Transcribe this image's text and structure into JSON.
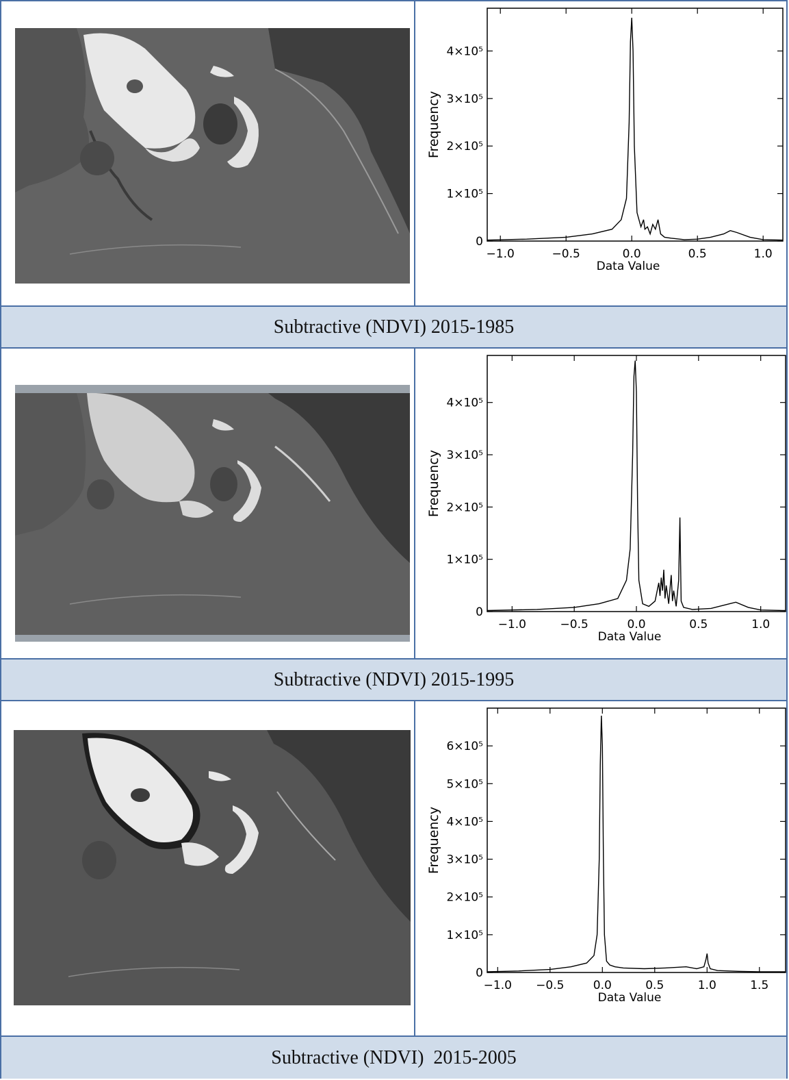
{
  "captions": [
    "Subtractive (NDVI) 2015-1985",
    "Subtractive (NDVI) 2015-1995",
    "Subtractive (NDVI)  2015-2005"
  ],
  "image_alts": [
    "NDVI difference image 2015-1985",
    "NDVI difference image 2015-1995",
    "NDVI difference image 2015-2005"
  ],
  "colors": {
    "border": "#4a6fa5",
    "caption_bg": "#d0dcea",
    "line": "#000000"
  },
  "chart_data": [
    {
      "type": "line",
      "xlabel": "Data Value",
      "ylabel": "Frequency",
      "xlim": [
        -1.1,
        1.15
      ],
      "ylim": [
        0,
        490000
      ],
      "xticks": [
        -1.0,
        -0.5,
        0.0,
        0.5,
        1.0
      ],
      "xtick_labels": [
        "−1.0",
        "−0.5",
        "0.0",
        "0.5",
        "1.0"
      ],
      "yticks": [
        0,
        100000,
        200000,
        300000,
        400000
      ],
      "ytick_labels": [
        "0",
        "1×10⁵",
        "2×10⁵",
        "3×10⁵",
        "4×10⁵"
      ],
      "series": [
        {
          "x": [
            -1.1,
            -0.8,
            -0.5,
            -0.3,
            -0.15,
            -0.08,
            -0.04,
            -0.02,
            -0.01,
            0.0,
            0.01,
            0.02,
            0.04,
            0.07,
            0.09,
            0.1,
            0.12,
            0.14,
            0.16,
            0.18,
            0.2,
            0.22,
            0.25,
            0.3,
            0.4,
            0.5,
            0.6,
            0.7,
            0.75,
            0.8,
            0.9,
            1.0,
            1.15
          ],
          "y": [
            2000,
            4000,
            8000,
            15000,
            25000,
            45000,
            90000,
            250000,
            420000,
            470000,
            400000,
            200000,
            60000,
            30000,
            45000,
            25000,
            30000,
            15000,
            35000,
            25000,
            45000,
            15000,
            8000,
            6000,
            3000,
            4000,
            8000,
            15000,
            22000,
            18000,
            8000,
            3000,
            2000
          ]
        }
      ]
    },
    {
      "type": "line",
      "xlabel": "Data Value",
      "ylabel": "Frequency",
      "xlim": [
        -1.2,
        1.2
      ],
      "ylim": [
        0,
        490000
      ],
      "xticks": [
        -1.0,
        -0.5,
        0.0,
        0.5,
        1.0
      ],
      "xtick_labels": [
        "−1.0",
        "−0.5",
        "0.0",
        "0.5",
        "1.0"
      ],
      "yticks": [
        0,
        100000,
        200000,
        300000,
        400000
      ],
      "ytick_labels": [
        "0",
        "1×10⁵",
        "2×10⁵",
        "3×10⁵",
        "4×10⁵"
      ],
      "series": [
        {
          "x": [
            -1.2,
            -0.8,
            -0.5,
            -0.3,
            -0.15,
            -0.08,
            -0.05,
            -0.03,
            -0.02,
            -0.01,
            0.0,
            0.01,
            0.02,
            0.05,
            0.1,
            0.15,
            0.18,
            0.19,
            0.2,
            0.21,
            0.22,
            0.23,
            0.24,
            0.26,
            0.28,
            0.29,
            0.3,
            0.32,
            0.34,
            0.35,
            0.36,
            0.38,
            0.45,
            0.6,
            0.75,
            0.8,
            0.9,
            1.0,
            1.2
          ],
          "y": [
            2000,
            4000,
            8000,
            15000,
            25000,
            60000,
            120000,
            300000,
            450000,
            480000,
            420000,
            200000,
            60000,
            15000,
            10000,
            20000,
            55000,
            30000,
            65000,
            40000,
            80000,
            25000,
            50000,
            15000,
            70000,
            20000,
            40000,
            10000,
            60000,
            180000,
            20000,
            8000,
            4000,
            6000,
            15000,
            18000,
            8000,
            3000,
            2000
          ]
        }
      ]
    },
    {
      "type": "line",
      "xlabel": "Data Value",
      "ylabel": "Frequency",
      "xlim": [
        -1.1,
        1.75
      ],
      "ylim": [
        0,
        700000
      ],
      "xticks": [
        -1.0,
        -0.5,
        0.0,
        0.5,
        1.0,
        1.5
      ],
      "xtick_labels": [
        "−1.0",
        "−0.5",
        "0.0",
        "0.5",
        "1.0",
        "1.5"
      ],
      "yticks": [
        0,
        100000,
        200000,
        300000,
        400000,
        500000,
        600000
      ],
      "ytick_labels": [
        "0",
        "1×10⁵",
        "2×10⁵",
        "3×10⁵",
        "4×10⁵",
        "5×10⁵",
        "6×10⁵"
      ],
      "series": [
        {
          "x": [
            -1.1,
            -0.8,
            -0.5,
            -0.3,
            -0.15,
            -0.08,
            -0.05,
            -0.03,
            -0.02,
            -0.01,
            0.0,
            0.01,
            0.02,
            0.04,
            0.07,
            0.12,
            0.2,
            0.4,
            0.6,
            0.8,
            0.9,
            0.97,
            0.99,
            1.0,
            1.01,
            1.03,
            1.1,
            1.3,
            1.5,
            1.75
          ],
          "y": [
            2000,
            4000,
            8000,
            15000,
            25000,
            45000,
            100000,
            300000,
            550000,
            680000,
            600000,
            300000,
            100000,
            30000,
            20000,
            15000,
            12000,
            10000,
            12000,
            15000,
            10000,
            15000,
            35000,
            50000,
            25000,
            10000,
            5000,
            3000,
            2000,
            2000
          ]
        }
      ]
    }
  ]
}
